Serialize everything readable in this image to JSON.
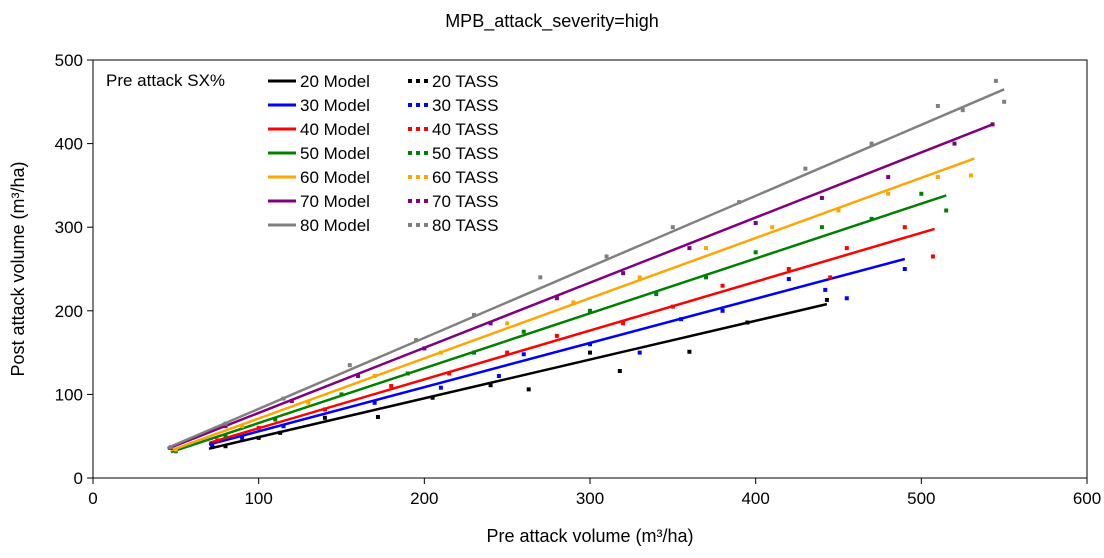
{
  "chart_data": {
    "type": "scatter",
    "title": "MPB_attack_severity=high",
    "xlabel": "Pre attack volume (m³/ha)",
    "ylabel": "Post attack volume (m³/ha)",
    "xlim": [
      0,
      600
    ],
    "ylim": [
      0,
      500
    ],
    "xticks": [
      0,
      100,
      200,
      300,
      400,
      500,
      600
    ],
    "yticks": [
      0,
      100,
      200,
      300,
      400,
      500
    ],
    "grid": false,
    "legend_title": "Pre attack SX%",
    "legend_position": "top-left",
    "series": [
      {
        "name": "20 Model",
        "kind": "line",
        "color": "#000000",
        "x": [
          70,
          443
        ],
        "y": [
          35,
          208
        ]
      },
      {
        "name": "30 Model",
        "kind": "line",
        "color": "#0000ff",
        "x": [
          70,
          490
        ],
        "y": [
          40,
          262
        ]
      },
      {
        "name": "40 Model",
        "kind": "line",
        "color": "#ff0000",
        "x": [
          70,
          508
        ],
        "y": [
          42,
          298
        ]
      },
      {
        "name": "50 Model",
        "kind": "line",
        "color": "#008000",
        "x": [
          47,
          515
        ],
        "y": [
          31,
          338
        ]
      },
      {
        "name": "60 Model",
        "kind": "line",
        "color": "#ffa500",
        "x": [
          47,
          532
        ],
        "y": [
          33,
          382
        ]
      },
      {
        "name": "70 Model",
        "kind": "line",
        "color": "#800080",
        "x": [
          45,
          543
        ],
        "y": [
          35,
          423
        ]
      },
      {
        "name": "80 Model",
        "kind": "line",
        "color": "#808080",
        "x": [
          45,
          550
        ],
        "y": [
          36,
          465
        ]
      },
      {
        "name": "20 TASS",
        "kind": "points",
        "color": "#000000",
        "x": [
          72,
          80,
          100,
          113,
          140,
          172,
          205,
          240,
          263,
          300,
          318,
          360,
          395,
          443
        ],
        "y": [
          37,
          38,
          48,
          54,
          72,
          73,
          96,
          111,
          106,
          150,
          128,
          151,
          186,
          213
        ]
      },
      {
        "name": "30 TASS",
        "kind": "points",
        "color": "#0000ff",
        "x": [
          72,
          90,
          115,
          170,
          210,
          245,
          260,
          300,
          330,
          355,
          380,
          420,
          442,
          455,
          490
        ],
        "y": [
          40,
          48,
          62,
          90,
          108,
          122,
          148,
          160,
          150,
          190,
          200,
          238,
          225,
          215,
          250
        ]
      },
      {
        "name": "40 TASS",
        "kind": "points",
        "color": "#ff0000",
        "x": [
          75,
          100,
          140,
          180,
          215,
          250,
          280,
          320,
          350,
          380,
          420,
          445,
          455,
          490,
          507
        ],
        "y": [
          45,
          60,
          82,
          110,
          125,
          150,
          170,
          185,
          205,
          230,
          250,
          240,
          275,
          300,
          265
        ]
      },
      {
        "name": "50 TASS",
        "kind": "points",
        "color": "#008000",
        "x": [
          50,
          80,
          110,
          150,
          190,
          230,
          260,
          300,
          340,
          370,
          400,
          440,
          470,
          500,
          515
        ],
        "y": [
          32,
          50,
          70,
          100,
          125,
          150,
          175,
          200,
          220,
          240,
          270,
          300,
          310,
          340,
          320
        ]
      },
      {
        "name": "60 TASS",
        "kind": "points",
        "color": "#ffa500",
        "x": [
          50,
          90,
          130,
          170,
          210,
          250,
          290,
          330,
          370,
          410,
          450,
          480,
          510,
          530
        ],
        "y": [
          34,
          62,
          90,
          122,
          150,
          185,
          210,
          240,
          275,
          300,
          320,
          340,
          360,
          362
        ]
      },
      {
        "name": "70 TASS",
        "kind": "points",
        "color": "#800080",
        "x": [
          47,
          80,
          120,
          160,
          200,
          240,
          280,
          320,
          360,
          400,
          440,
          480,
          520,
          543
        ],
        "y": [
          36,
          62,
          92,
          122,
          155,
          185,
          215,
          245,
          275,
          305,
          335,
          360,
          400,
          423
        ]
      },
      {
        "name": "80 TASS",
        "kind": "points",
        "color": "#808080",
        "x": [
          47,
          80,
          115,
          155,
          195,
          230,
          270,
          310,
          350,
          390,
          430,
          470,
          510,
          525,
          545,
          550
        ],
        "y": [
          37,
          65,
          95,
          135,
          165,
          195,
          240,
          265,
          300,
          330,
          370,
          400,
          445,
          440,
          475,
          450
        ]
      }
    ]
  }
}
